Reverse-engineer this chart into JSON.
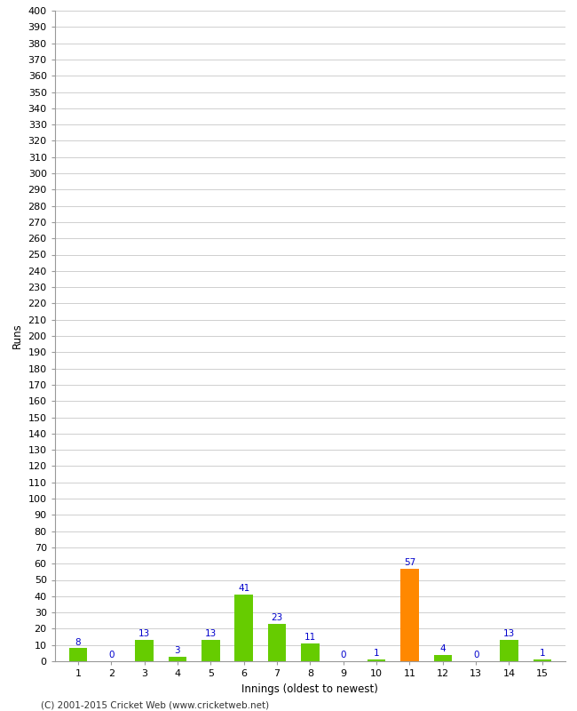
{
  "innings": [
    1,
    2,
    3,
    4,
    5,
    6,
    7,
    8,
    9,
    10,
    11,
    12,
    13,
    14,
    15
  ],
  "runs": [
    8,
    0,
    13,
    3,
    13,
    41,
    23,
    11,
    0,
    1,
    57,
    4,
    0,
    13,
    1
  ],
  "bar_colors": [
    "#66cc00",
    "#66cc00",
    "#66cc00",
    "#66cc00",
    "#66cc00",
    "#66cc00",
    "#66cc00",
    "#66cc00",
    "#66cc00",
    "#66cc00",
    "#ff8800",
    "#66cc00",
    "#66cc00",
    "#66cc00",
    "#66cc00"
  ],
  "xlabel": "Innings (oldest to newest)",
  "ylabel": "Runs",
  "ylim": [
    0,
    400
  ],
  "ytick_step": 10,
  "label_color": "#0000cc",
  "label_fontsize": 7.5,
  "axis_tick_fontsize": 8,
  "axis_label_fontsize": 8.5,
  "background_color": "#ffffff",
  "grid_color": "#c8c8c8",
  "footer": "(C) 2001-2015 Cricket Web (www.cricketweb.net)",
  "footer_fontsize": 7.5
}
